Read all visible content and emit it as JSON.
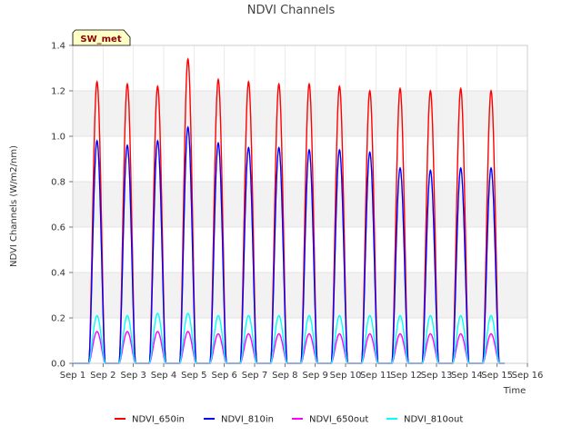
{
  "chart_data": {
    "type": "line",
    "title": "NDVI Channels",
    "xlabel": "Time",
    "ylabel": "NDVI Channels (W/m2/nm)",
    "badge": "SW_met",
    "xlim": [
      1,
      16
    ],
    "ylim": [
      0,
      1.4
    ],
    "yticks": [
      0.0,
      0.2,
      0.4,
      0.6,
      0.8,
      1.0,
      1.2,
      1.4
    ],
    "ytick_labels": [
      "0.0",
      "0.2",
      "0.4",
      "0.6",
      "0.8",
      "1.0",
      "1.2",
      "1.4"
    ],
    "xticks": [
      1,
      2,
      3,
      4,
      5,
      6,
      7,
      8,
      9,
      10,
      11,
      12,
      13,
      14,
      15,
      16
    ],
    "xtick_labels": [
      "Sep 1",
      "Sep 2",
      "Sep 3",
      "Sep 4",
      "Sep 5",
      "Sep 6",
      "Sep 7",
      "Sep 8",
      "Sep 9",
      "Sep 10",
      "Sep 11",
      "Sep 12",
      "Sep 13",
      "Sep 14",
      "Sep 15",
      "Sep 16"
    ],
    "day_noon": [
      1.8,
      2.8,
      3.8,
      4.8,
      5.8,
      6.8,
      7.8,
      8.8,
      9.8,
      10.8,
      11.8,
      12.8,
      13.8,
      14.8
    ],
    "daylight_halfwidth_days": 0.27,
    "series": [
      {
        "name": "NDVI_650in",
        "color": "#ff0000",
        "daily_peak": [
          1.24,
          1.23,
          1.22,
          1.34,
          1.25,
          1.24,
          1.23,
          1.23,
          1.22,
          1.2,
          1.21,
          1.2,
          1.21,
          1.2
        ]
      },
      {
        "name": "NDVI_810in",
        "color": "#0000ff",
        "daily_peak": [
          0.98,
          0.96,
          0.98,
          1.04,
          0.97,
          0.95,
          0.95,
          0.94,
          0.94,
          0.93,
          0.86,
          0.85,
          0.86,
          0.86
        ]
      },
      {
        "name": "NDVI_650out",
        "color": "#ff00ff",
        "daily_peak": [
          0.14,
          0.14,
          0.14,
          0.14,
          0.13,
          0.13,
          0.13,
          0.13,
          0.13,
          0.13,
          0.13,
          0.13,
          0.13,
          0.13
        ]
      },
      {
        "name": "NDVI_810out",
        "color": "#00ffff",
        "daily_peak": [
          0.21,
          0.21,
          0.22,
          0.22,
          0.21,
          0.21,
          0.21,
          0.21,
          0.21,
          0.21,
          0.21,
          0.21,
          0.21,
          0.21
        ]
      }
    ]
  }
}
